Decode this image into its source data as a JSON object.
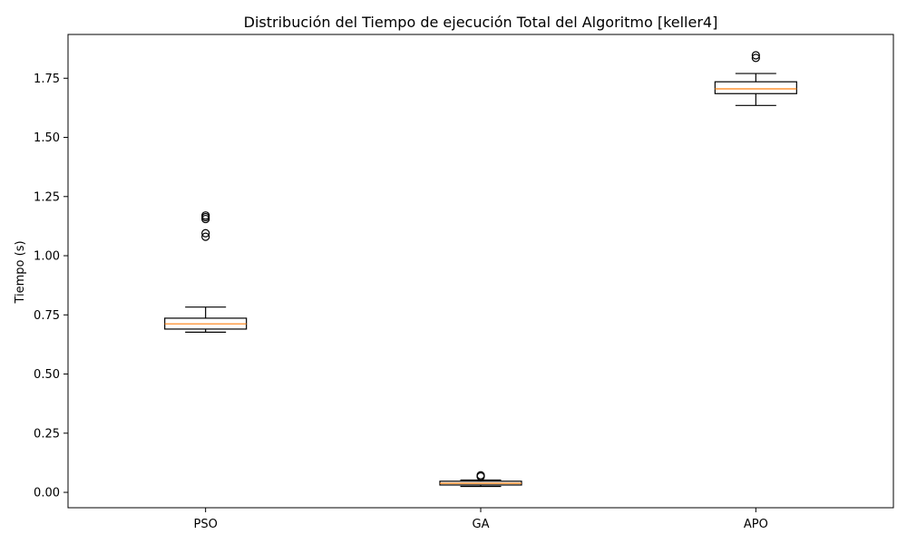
{
  "chart_data": {
    "type": "box",
    "title": "Distribución del Tiempo de ejecución Total del Algoritmo [keller4]",
    "xlabel": "",
    "ylabel": "Tiempo (s)",
    "ylim": [
      -0.065,
      1.935
    ],
    "yticks": [
      "0.00",
      "0.25",
      "0.50",
      "0.75",
      "1.00",
      "1.25",
      "1.50",
      "1.75"
    ],
    "grid": false,
    "categories": [
      "PSO",
      "GA",
      "APO"
    ],
    "box_color": "#000000",
    "median_color": "#ff7f0e",
    "boxes": [
      {
        "name": "PSO",
        "whisker_low": 0.677,
        "q1": 0.69,
        "median": 0.712,
        "q3": 0.736,
        "whisker_high": 0.783,
        "outliers": [
          1.08,
          1.095,
          1.155,
          1.163,
          1.17
        ]
      },
      {
        "name": "GA",
        "whisker_low": 0.025,
        "q1": 0.031,
        "median": 0.038,
        "q3": 0.047,
        "whisker_high": 0.052,
        "outliers": [
          0.067,
          0.072
        ]
      },
      {
        "name": "APO",
        "whisker_low": 1.635,
        "q1": 1.685,
        "median": 1.705,
        "q3": 1.735,
        "whisker_high": 1.77,
        "outliers": [
          1.836,
          1.847
        ]
      }
    ]
  }
}
